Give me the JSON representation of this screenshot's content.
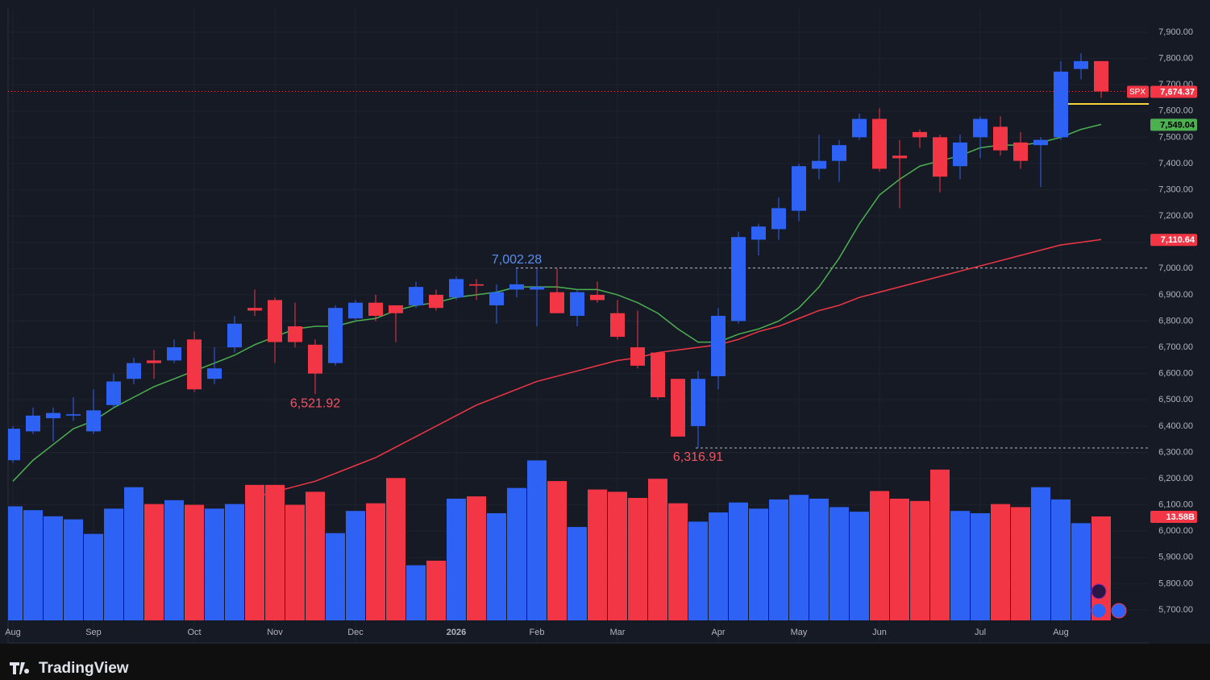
{
  "chart_data": {
    "type": "candlestick",
    "symbol": "SPX",
    "brand": "TradingView",
    "grid": true,
    "up_color": "#2e62f4",
    "down_color": "#f23645",
    "categories": [
      "Aug",
      null,
      null,
      null,
      "Sep",
      null,
      null,
      null,
      null,
      "Oct",
      null,
      null,
      null,
      "Nov",
      null,
      null,
      null,
      "Dec",
      null,
      null,
      null,
      null,
      "2026",
      null,
      null,
      null,
      "Feb",
      null,
      null,
      null,
      "Mar",
      null,
      null,
      null,
      null,
      "Apr",
      null,
      null,
      null,
      "May",
      null,
      null,
      null,
      "Jun",
      null,
      null,
      null,
      null,
      "Jul",
      null,
      null,
      null,
      "Aug",
      null,
      null
    ],
    "open": [
      6270,
      6380,
      6430,
      6440,
      6380,
      6480,
      6580,
      6650,
      6650,
      6730,
      6580,
      6700,
      6850,
      6880,
      6780,
      6710,
      6640,
      6810,
      6870,
      6860,
      6860,
      6900,
      6890,
      6940,
      6860,
      6920,
      6920,
      6910,
      6820,
      6900,
      6830,
      6700,
      6680,
      6580,
      6400,
      6590,
      6800,
      7110,
      7150,
      7220,
      7380,
      7410,
      7500,
      7570,
      7430,
      7520,
      7500,
      7390,
      7500,
      7540,
      7480,
      7470,
      7500,
      7760,
      7790
    ],
    "high": [
      6400,
      6470,
      6470,
      6510,
      6540,
      6600,
      6660,
      6690,
      6730,
      6760,
      6700,
      6820,
      6920,
      6890,
      6870,
      6730,
      6860,
      6880,
      6900,
      6860,
      6950,
      6920,
      6970,
      6960,
      6940,
      7002.28,
      7000,
      7000,
      6920,
      6950,
      6880,
      6840,
      6680,
      6580,
      6610,
      6850,
      7140,
      7170,
      7270,
      7400,
      7510,
      7490,
      7590,
      7610,
      7490,
      7530,
      7510,
      7510,
      7580,
      7580,
      7520,
      7500,
      7790,
      7820,
      7790
    ],
    "low": [
      6260,
      6370,
      6340,
      6420,
      6370,
      6470,
      6560,
      6580,
      6640,
      6530,
      6560,
      6680,
      6820,
      6640,
      6700,
      6521.92,
      6630,
      6800,
      6800,
      6720,
      6850,
      6840,
      6880,
      6880,
      6790,
      6890,
      6780,
      6830,
      6780,
      6870,
      6730,
      6620,
      6500,
      6360,
      6316.91,
      6540,
      6790,
      7050,
      7110,
      7180,
      7340,
      7330,
      7490,
      7370,
      7230,
      7460,
      7290,
      7340,
      7420,
      7430,
      7380,
      7310,
      7490,
      7720,
      7650
    ],
    "close": [
      6390,
      6440,
      6450,
      6445,
      6460,
      6570,
      6640,
      6640,
      6700,
      6540,
      6620,
      6790,
      6840,
      6720,
      6720,
      6600,
      6850,
      6870,
      6820,
      6830,
      6930,
      6850,
      6960,
      6935,
      6910,
      6940,
      6930,
      6830,
      6910,
      6880,
      6740,
      6630,
      6510,
      6360,
      6580,
      6820,
      7120,
      7160,
      7230,
      7390,
      7410,
      7470,
      7570,
      7380,
      7420,
      7500,
      7350,
      7480,
      7570,
      7450,
      7410,
      7490,
      7750,
      7790,
      7674.37
    ],
    "volume": [
      14.9,
      14.4,
      13.6,
      13.2,
      11.3,
      14.6,
      17.4,
      15.2,
      15.7,
      15.1,
      14.6,
      15.2,
      17.7,
      17.7,
      15.1,
      16.8,
      11.4,
      14.3,
      15.3,
      18.6,
      7.2,
      7.8,
      15.9,
      16.2,
      14.0,
      17.3,
      20.9,
      18.2,
      12.2,
      17.1,
      16.8,
      16.0,
      18.5,
      15.3,
      12.9,
      14.1,
      15.4,
      14.6,
      15.8,
      16.4,
      15.9,
      14.8,
      14.2,
      16.9,
      15.9,
      15.6,
      19.7,
      14.3,
      14.0,
      15.2,
      14.8,
      17.4,
      15.8,
      12.7,
      13.58
    ],
    "volume_last_label": "13.58B",
    "ma_fast": {
      "color": "#4caf50",
      "values": [
        6190,
        6270,
        6330,
        6390,
        6420,
        6470,
        6510,
        6550,
        6580,
        6610,
        6640,
        6670,
        6710,
        6740,
        6770,
        6780,
        6780,
        6800,
        6810,
        6840,
        6860,
        6870,
        6890,
        6900,
        6910,
        6930,
        6930,
        6930,
        6920,
        6920,
        6900,
        6870,
        6830,
        6770,
        6720,
        6720,
        6750,
        6770,
        6800,
        6850,
        6930,
        7040,
        7170,
        7280,
        7340,
        7390,
        7410,
        7430,
        7460,
        7470,
        7470,
        7480,
        7500,
        7530,
        7549.04
      ],
      "last_label": "7,549.04"
    },
    "ma_slow": {
      "color": "#f23645",
      "values": [
        null,
        null,
        null,
        null,
        null,
        null,
        null,
        null,
        null,
        null,
        null,
        null,
        6130,
        6150,
        6170,
        6190,
        6220,
        6250,
        6280,
        6320,
        6360,
        6400,
        6440,
        6480,
        6510,
        6540,
        6570,
        6590,
        6610,
        6630,
        6650,
        6660,
        6680,
        6690,
        6700,
        6710,
        6730,
        6760,
        6780,
        6810,
        6840,
        6860,
        6890,
        6910,
        6930,
        6950,
        6970,
        6990,
        7010,
        7030,
        7050,
        7070,
        7090,
        7100,
        7110.64
      ],
      "last_label": "7,110.64"
    },
    "last_price_label": "7,674.37",
    "high_marker": {
      "value": 7002.28,
      "label": "7,002.28"
    },
    "low_markers": [
      {
        "value": 6521.92,
        "label": "6,521.92"
      },
      {
        "value": 6316.91,
        "label": "6,316.91"
      }
    ],
    "hline": {
      "value": 7627,
      "color": "#f5d33a"
    },
    "ylim": [
      5700,
      7900
    ],
    "yticks": [
      {
        "value": 5700,
        "label": "5,700.00"
      },
      {
        "value": 5800,
        "label": "5,800.00"
      },
      {
        "value": 5900,
        "label": "5,900.00"
      },
      {
        "value": 6000,
        "label": "6,000.00"
      },
      {
        "value": 6100,
        "label": "6,100.00"
      },
      {
        "value": 6200,
        "label": "6,200.00"
      },
      {
        "value": 6300,
        "label": "6,300.00"
      },
      {
        "value": 6400,
        "label": "6,400.00"
      },
      {
        "value": 6500,
        "label": "6,500.00"
      },
      {
        "value": 6600,
        "label": "6,600.00"
      },
      {
        "value": 6700,
        "label": "6,700.00"
      },
      {
        "value": 6800,
        "label": "6,800.00"
      },
      {
        "value": 6900,
        "label": "6,900.00"
      },
      {
        "value": 7000,
        "label": "7,000.00"
      },
      {
        "value": 7100,
        "label": "7,100.00"
      },
      {
        "value": 7200,
        "label": "7,200.00"
      },
      {
        "value": 7300,
        "label": "7,300.00"
      },
      {
        "value": 7400,
        "label": "7,400.00"
      },
      {
        "value": 7500,
        "label": "7,500.00"
      },
      {
        "value": 7600,
        "label": "7,600.00"
      },
      {
        "value": 7700,
        "label": "7,700.00"
      },
      {
        "value": 7800,
        "label": "7,800.00"
      },
      {
        "value": 7900,
        "label": "7,900.00"
      }
    ]
  }
}
